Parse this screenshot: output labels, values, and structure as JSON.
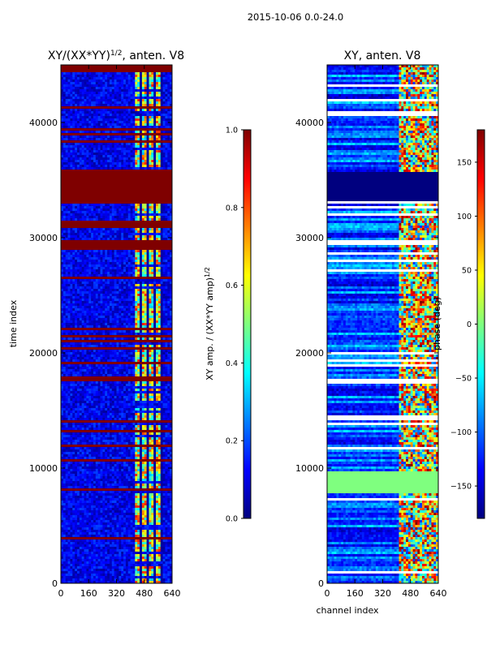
{
  "figure": {
    "suptitle": "2015-10-06 0.0-24.0"
  },
  "colors": {
    "jet_stops": [
      "#00007f",
      "#0000ff",
      "#007fff",
      "#00ffff",
      "#7fff7f",
      "#ffff00",
      "#ff7f00",
      "#ff0000",
      "#7f0000"
    ],
    "background": "#ffffff",
    "axis": "#000000"
  },
  "chart_data": [
    {
      "type": "heatmap",
      "title_main": "XY/(XX*YY)",
      "title_sup": "1/2",
      "title_suffix": ", anten. V8",
      "xlabel": "",
      "ylabel": "time index",
      "xlim": [
        0,
        640
      ],
      "ylim": [
        0,
        45000
      ],
      "xticks": [
        0,
        160,
        320,
        480,
        640
      ],
      "yticks": [
        0,
        10000,
        20000,
        30000,
        40000
      ],
      "colorbar": {
        "label_main": "XY amp. / (XX*YY amp)",
        "label_sup": "1/2",
        "range": [
          0.0,
          1.0
        ],
        "ticks": [
          "0.0",
          "0.2",
          "0.4",
          "0.6",
          "0.8",
          "1.0"
        ]
      },
      "value_range": [
        0.0,
        1.0
      ],
      "saturated_time_blocks": [
        [
          33200,
          35700
        ],
        [
          44300,
          45000
        ],
        [
          29000,
          29800
        ],
        [
          31000,
          31500
        ],
        [
          17500,
          17800
        ]
      ],
      "hot_channel_band": [
        430,
        580
      ]
    },
    {
      "type": "heatmap",
      "title_main": "XY, anten. V8",
      "title_sup": "",
      "title_suffix": "",
      "xlabel": "channel index",
      "ylabel": "",
      "xlim": [
        0,
        640
      ],
      "ylim": [
        0,
        45000
      ],
      "xticks": [
        0,
        160,
        320,
        480,
        640
      ],
      "yticks": [
        0,
        10000,
        20000,
        30000,
        40000
      ],
      "colorbar": {
        "label_main": "phase (deg)",
        "label_sup": "",
        "range": [
          -180,
          180
        ],
        "ticks": [
          "-150",
          "-100",
          "-50",
          "0",
          "50",
          "100",
          "150"
        ]
      },
      "value_range": [
        -180,
        180
      ],
      "flat_time_blocks": [
        [
          33200,
          35700
        ]
      ],
      "green_time_blocks": [
        [
          7800,
          9800
        ]
      ],
      "hot_channel_band": [
        410,
        640
      ]
    }
  ]
}
